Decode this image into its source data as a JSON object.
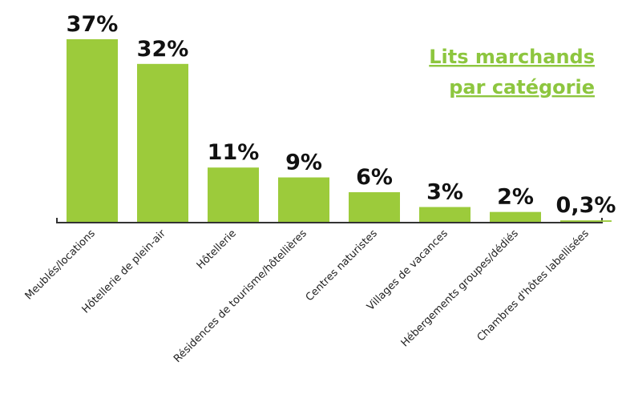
{
  "chart_data": {
    "type": "bar",
    "title": [
      "Lits marchands",
      "par catégorie"
    ],
    "categories": [
      "Meublés/locations",
      "Hôtellerie de plein-air",
      "Hôtellerie",
      "Résidences de tourisme/hôtellières",
      "Centres naturistes",
      "Villages de vacances",
      "Hébergements groupes/dédiés",
      "Chambres d'hôtes labellisées"
    ],
    "values": [
      37,
      32,
      11,
      9,
      6,
      3,
      2,
      0.3
    ],
    "value_labels": [
      "37%",
      "32%",
      "11%",
      "9%",
      "6%",
      "3%",
      "2%",
      "0,3%"
    ],
    "color": "#9ccb3b"
  }
}
